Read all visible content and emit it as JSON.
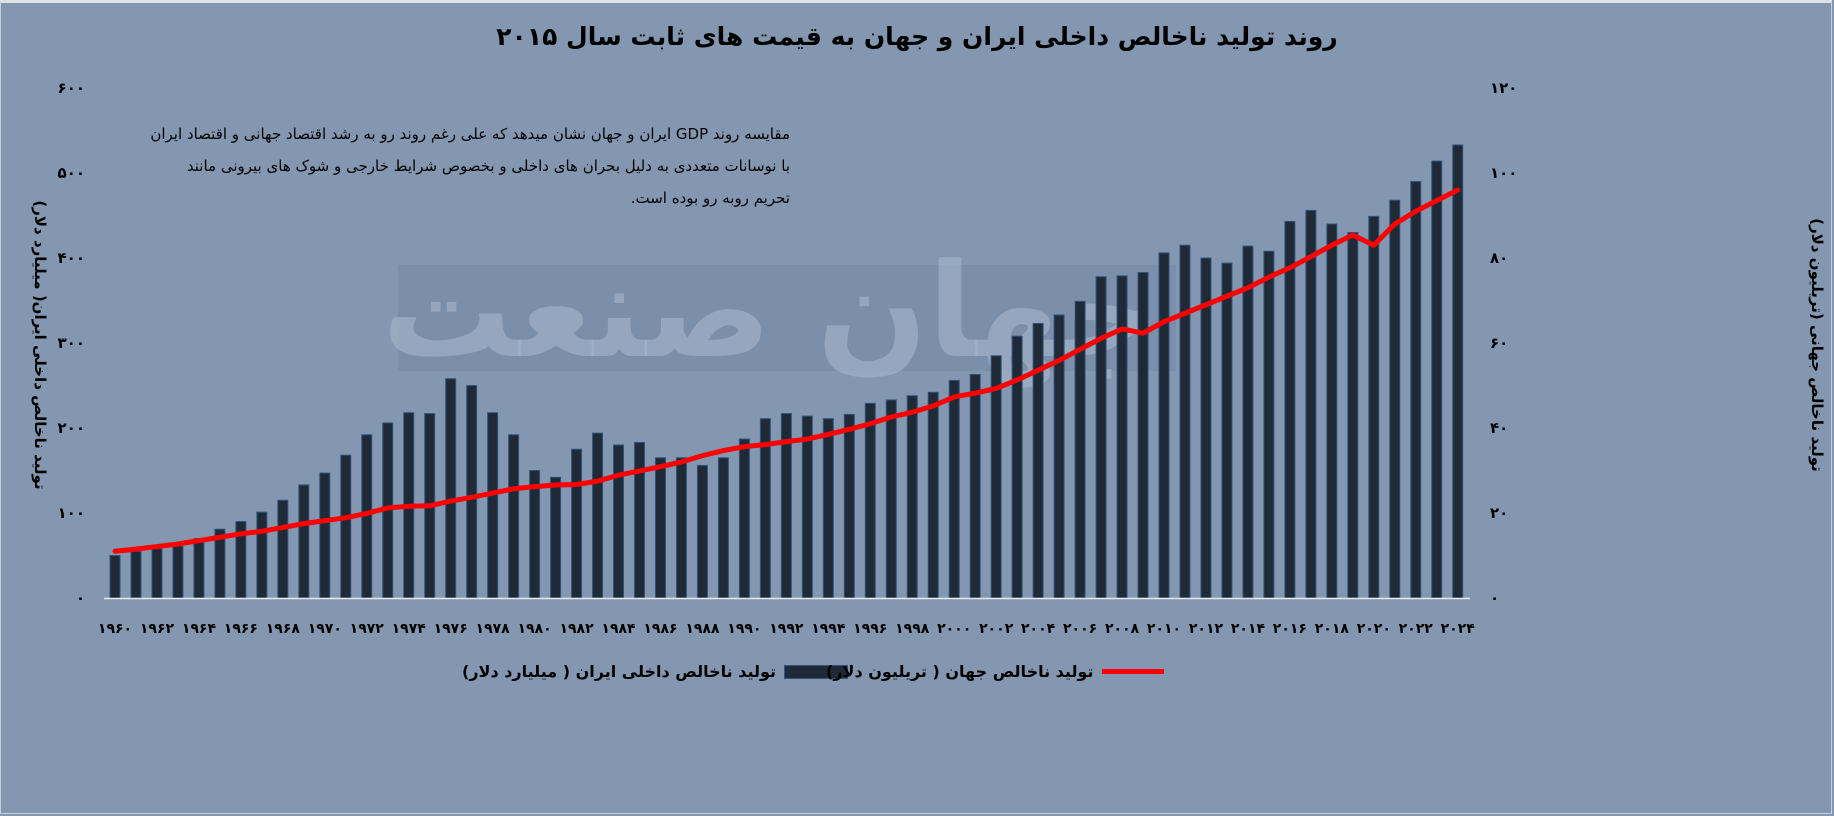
{
  "chart_data": {
    "type": "bar+line",
    "title": "روند تولید ناخالص داخلی ایران و جهان به قیمت های ثابت سال ۲۰۱۵",
    "annotation": "مقایسه روند GDP ایران و جهان نشان میدهد که علی رغم روند رو به رشد اقتصاد جهانی و اقتصاد ایران با نوسانات متعددی به دلیل بحران های داخلی و بخصوص شرایط خارجی و شوک های بیرونی مانند تحریم روبه رو بوده است.",
    "ylabel_left": "تولید ناخالص داخلی ایران( میلیارد دلار)",
    "ylabel_right": "تولید ناخالص جهانی (تریلیون دلار)",
    "ylim_left": [
      0,
      600
    ],
    "ylim_right": [
      0,
      120
    ],
    "yticks_left": [
      "۰",
      "۱۰۰",
      "۲۰۰",
      "۳۰۰",
      "۴۰۰",
      "۵۰۰",
      "۶۰۰"
    ],
    "yticks_right": [
      "۰",
      "۲۰",
      "۴۰",
      "۶۰",
      "۸۰",
      "۱۰۰",
      "۱۲۰"
    ],
    "grid": false,
    "legend_placement": "bottom",
    "categories": [
      1960,
      1961,
      1962,
      1963,
      1964,
      1965,
      1966,
      1967,
      1968,
      1969,
      1970,
      1971,
      1972,
      1973,
      1974,
      1975,
      1976,
      1977,
      1978,
      1979,
      1980,
      1981,
      1982,
      1983,
      1984,
      1985,
      1986,
      1987,
      1988,
      1989,
      1990,
      1991,
      1992,
      1993,
      1994,
      1995,
      1996,
      1997,
      1998,
      1999,
      2000,
      2001,
      2002,
      2003,
      2004,
      2005,
      2006,
      2007,
      2008,
      2009,
      2010,
      2011,
      2012,
      2013,
      2014,
      2015,
      2016,
      2017,
      2018,
      2019,
      2020,
      2021,
      2022,
      2023,
      2024
    ],
    "x_tick_labels": [
      "۱۹۶۰",
      "۱۹۶۲",
      "۱۹۶۴",
      "۱۹۶۶",
      "۱۹۶۸",
      "۱۹۷۰",
      "۱۹۷۲",
      "۱۹۷۴",
      "۱۹۷۶",
      "۱۹۷۸",
      "۱۹۸۰",
      "۱۹۸۲",
      "۱۹۸۴",
      "۱۹۸۶",
      "۱۹۸۸",
      "۱۹۹۰",
      "۱۹۹۲",
      "۱۹۹۴",
      "۱۹۹۶",
      "۱۹۹۸",
      "۲۰۰۰",
      "۲۰۰۲",
      "۲۰۰۴",
      "۲۰۰۶",
      "۲۰۰۸",
      "۲۰۱۰",
      "۲۰۱۲",
      "۲۰۱۴",
      "۲۰۱۶",
      "۲۰۱۸",
      "۲۰۲۰",
      "۲۰۲۲",
      "۲۰۲۴"
    ],
    "series": [
      {
        "name": "تولید ناخالص داخلی ایران ( میلیارد دلار)",
        "type": "bar",
        "axis": "left",
        "color": "#1f2a36",
        "values": [
          50,
          55,
          58,
          61,
          70,
          81,
          90,
          101,
          115,
          133,
          147,
          168,
          192,
          206,
          218,
          217,
          258,
          250,
          218,
          192,
          150,
          142,
          175,
          194,
          180,
          183,
          165,
          165,
          156,
          165,
          187,
          211,
          217,
          214,
          211,
          216,
          229,
          233,
          238,
          242,
          256,
          263,
          285,
          308,
          323,
          333,
          349,
          378,
          379,
          383,
          406,
          415,
          400,
          394,
          414,
          408,
          443,
          456,
          440,
          430,
          449,
          468,
          490,
          514,
          533
        ]
      },
      {
        "name": "تولید ناخالص جهان ( تریلیون دلار)",
        "type": "line",
        "axis": "right",
        "color": "#ff0000",
        "values": [
          11,
          11.5,
          12.1,
          12.7,
          13.5,
          14.3,
          15.1,
          15.7,
          16.6,
          17.5,
          18.2,
          18.9,
          19.9,
          21.2,
          21.6,
          21.7,
          22.8,
          23.7,
          24.7,
          25.7,
          26.2,
          26.6,
          26.7,
          27.5,
          28.9,
          29.9,
          30.9,
          32.0,
          33.5,
          34.7,
          35.6,
          36.1,
          36.8,
          37.4,
          38.5,
          39.7,
          41.0,
          42.6,
          43.7,
          45.2,
          47.3,
          48.2,
          49.3,
          51.3,
          53.6,
          55.9,
          58.5,
          61.1,
          63.3,
          62.3,
          65,
          67,
          69,
          71,
          73,
          75.5,
          77.7,
          80.3,
          83,
          85.4,
          83,
          88,
          91,
          93.5,
          96
        ]
      }
    ]
  },
  "watermark": "جهان صنعت"
}
